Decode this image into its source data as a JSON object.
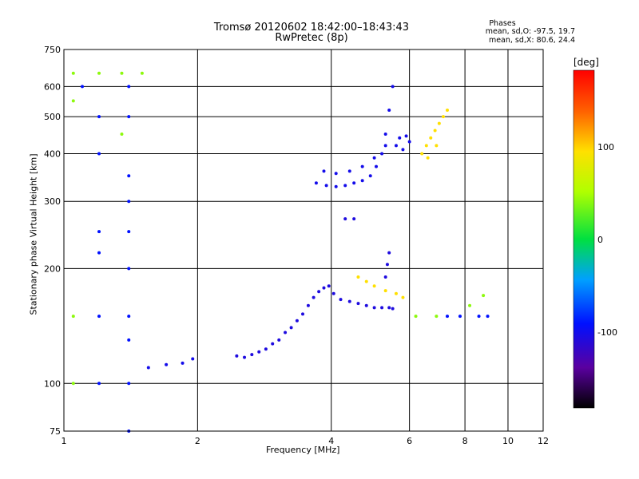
{
  "title_line1": "Tromsø 20120602 18:42:00–18:43:43",
  "title_line2": "RwPretec (8p)",
  "phases_info": {
    "heading": "Phases",
    "line_o": "mean, sd,O: -97.5, 19.7",
    "line_x": "mean, sd,X:  80.6, 24.4"
  },
  "colorbar": {
    "unit": "[deg]",
    "ticks": [
      "100",
      "0",
      "-100"
    ],
    "tick_values": [
      100,
      0,
      -100
    ],
    "range": [
      -180,
      180
    ]
  },
  "chart_data": {
    "type": "scatter",
    "title": "Tromsø 20120602 18:42:00–18:43:43",
    "subtitle": "RwPretec (8p)",
    "xlabel": "Frequency [MHz]",
    "ylabel": "Stationary phase Virtual Height [km]",
    "x_scale": "log",
    "y_scale": "log",
    "xlim": [
      1,
      12
    ],
    "ylim": [
      75,
      750
    ],
    "x_ticks": [
      1,
      2,
      4,
      6,
      8,
      10,
      12
    ],
    "x_tick_labels": [
      "1",
      "2",
      "4",
      "6",
      "8",
      "10",
      "12"
    ],
    "y_ticks": [
      75,
      100,
      200,
      300,
      400,
      500,
      600,
      750
    ],
    "y_tick_labels": [
      "75",
      "100",
      "200",
      "300",
      "400",
      "500",
      "600",
      "750"
    ],
    "grid": true,
    "series": [
      {
        "color_phase_deg": -105,
        "points": [
          [
            2.45,
            118
          ],
          [
            2.55,
            117
          ],
          [
            2.65,
            119
          ],
          [
            2.75,
            121
          ],
          [
            2.85,
            123
          ],
          [
            2.95,
            127
          ],
          [
            3.05,
            130
          ],
          [
            3.15,
            136
          ],
          [
            3.25,
            140
          ],
          [
            3.35,
            146
          ],
          [
            3.45,
            152
          ],
          [
            3.55,
            160
          ],
          [
            3.65,
            168
          ],
          [
            3.75,
            174
          ],
          [
            3.85,
            178
          ],
          [
            3.95,
            180
          ],
          [
            4.05,
            172
          ],
          [
            4.2,
            166
          ],
          [
            4.4,
            164
          ],
          [
            4.6,
            162
          ],
          [
            4.8,
            160
          ],
          [
            5.0,
            158
          ],
          [
            5.2,
            158
          ],
          [
            5.4,
            158
          ],
          [
            5.5,
            157
          ],
          [
            5.3,
            190
          ],
          [
            5.35,
            205
          ],
          [
            5.4,
            220
          ],
          [
            4.3,
            270
          ],
          [
            4.5,
            270
          ]
        ]
      },
      {
        "color_phase_deg": -100,
        "points": [
          [
            1.55,
            110
          ],
          [
            1.7,
            112
          ],
          [
            1.85,
            113
          ],
          [
            1.95,
            116
          ],
          [
            3.7,
            335
          ],
          [
            3.9,
            330
          ],
          [
            4.1,
            328
          ],
          [
            4.3,
            330
          ],
          [
            4.5,
            335
          ],
          [
            4.7,
            340
          ],
          [
            4.9,
            350
          ],
          [
            5.05,
            370
          ],
          [
            5.2,
            400
          ],
          [
            5.3,
            450
          ],
          [
            5.4,
            520
          ],
          [
            5.5,
            600
          ],
          [
            3.85,
            360
          ],
          [
            4.1,
            355
          ],
          [
            4.4,
            360
          ],
          [
            4.7,
            370
          ],
          [
            5.0,
            390
          ],
          [
            5.3,
            420
          ],
          [
            5.6,
            420
          ],
          [
            5.8,
            410
          ],
          [
            6.0,
            430
          ],
          [
            5.7,
            440
          ],
          [
            5.9,
            445
          ]
        ]
      },
      {
        "color_phase_deg": 95,
        "points": [
          [
            6.4,
            400
          ],
          [
            6.55,
            420
          ],
          [
            6.7,
            440
          ],
          [
            6.85,
            460
          ],
          [
            7.0,
            480
          ],
          [
            7.15,
            500
          ],
          [
            7.3,
            520
          ],
          [
            6.6,
            390
          ],
          [
            6.9,
            420
          ],
          [
            4.6,
            190
          ],
          [
            4.8,
            185
          ],
          [
            5.0,
            180
          ],
          [
            5.3,
            175
          ],
          [
            5.6,
            172
          ],
          [
            5.8,
            168
          ]
        ]
      },
      {
        "color_phase_deg": -90,
        "points": [
          [
            1.1,
            600
          ],
          [
            1.2,
            500
          ],
          [
            1.2,
            400
          ],
          [
            1.4,
            600
          ],
          [
            1.4,
            500
          ],
          [
            1.4,
            350
          ],
          [
            1.4,
            300
          ],
          [
            1.2,
            250
          ],
          [
            1.4,
            250
          ],
          [
            1.2,
            220
          ],
          [
            1.4,
            200
          ],
          [
            1.2,
            150
          ],
          [
            1.4,
            150
          ],
          [
            1.4,
            130
          ],
          [
            1.2,
            100
          ],
          [
            1.4,
            100
          ],
          [
            1.4,
            75
          ],
          [
            9.0,
            150
          ],
          [
            8.6,
            150
          ],
          [
            7.3,
            150
          ],
          [
            7.8,
            150
          ]
        ]
      },
      {
        "color_phase_deg": 40,
        "points": [
          [
            1.05,
            650
          ],
          [
            1.2,
            650
          ],
          [
            1.35,
            650
          ],
          [
            1.05,
            550
          ],
          [
            1.35,
            450
          ],
          [
            1.05,
            150
          ],
          [
            1.05,
            100
          ],
          [
            1.5,
            650
          ],
          [
            6.2,
            150
          ],
          [
            6.9,
            150
          ],
          [
            8.2,
            160
          ],
          [
            8.8,
            170
          ]
        ]
      }
    ]
  }
}
